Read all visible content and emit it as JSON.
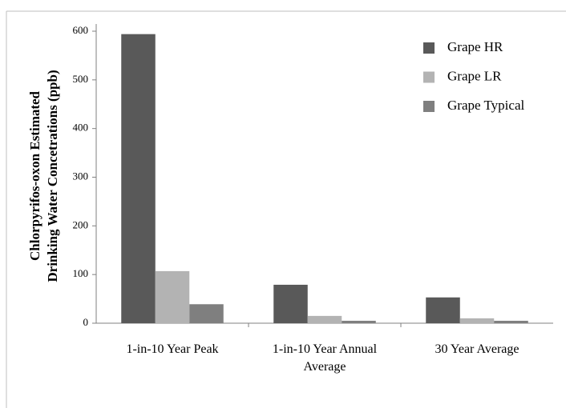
{
  "chart_data": {
    "type": "bar",
    "ylabel": [
      "Chlorpyrifos-oxon Estimated",
      "Drinking Water Concetrations (ppb)"
    ],
    "categories": [
      "1-in-10 Year Peak",
      "1-in-10 Year Annual Average",
      "30 Year Average"
    ],
    "series": [
      {
        "name": "Grape HR",
        "color": "#595959",
        "values": [
          594,
          79,
          53
        ]
      },
      {
        "name": "Grape LR",
        "color": "#b3b3b3",
        "values": [
          107,
          15,
          10
        ]
      },
      {
        "name": "Grape Typical",
        "color": "#7f7f7f",
        "values": [
          39,
          5,
          5
        ]
      }
    ],
    "ylim": [
      0,
      600
    ],
    "yticks": [
      0,
      100,
      200,
      300,
      400,
      500,
      600
    ],
    "legend": "upper right",
    "grid": false
  }
}
